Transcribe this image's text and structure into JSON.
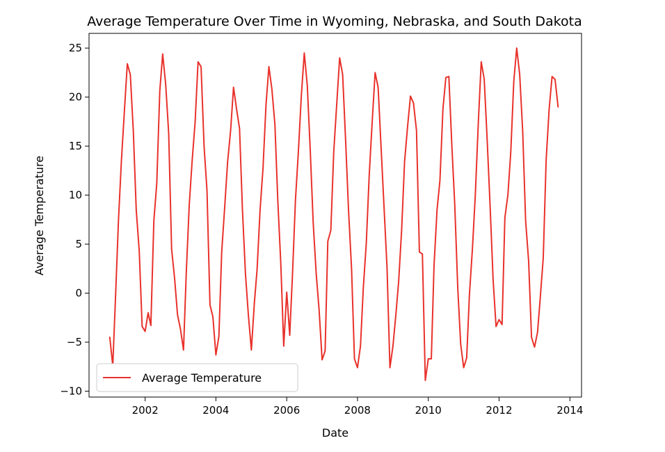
{
  "chart_data": {
    "type": "line",
    "title": "Average Temperature Over Time in Wyoming, Nebraska, and South Dakota",
    "xlabel": "Date",
    "ylabel": "Average Temperature",
    "xlim": [
      "2000-06-01",
      "2014-05-01"
    ],
    "ylim": [
      -10.6,
      26.5
    ],
    "xticks": [
      "2002",
      "2004",
      "2006",
      "2008",
      "2010",
      "2012",
      "2014"
    ],
    "yticks": [
      25,
      20,
      15,
      10,
      5,
      0,
      -5,
      -10
    ],
    "grid": false,
    "legend": {
      "position": "lower-left",
      "entries": [
        "Average Temperature"
      ]
    },
    "series": [
      {
        "name": "Average Temperature",
        "color": "#e8312a",
        "points": [
          {
            "x": "2001-01",
            "y": -4.5
          },
          {
            "x": "2001-02",
            "y": -7.4
          },
          {
            "x": "2001-03",
            "y": -0.5
          },
          {
            "x": "2001-04",
            "y": 7.5
          },
          {
            "x": "2001-05",
            "y": 13.5
          },
          {
            "x": "2001-06",
            "y": 18.6
          },
          {
            "x": "2001-07",
            "y": 23.4
          },
          {
            "x": "2001-08",
            "y": 22.3
          },
          {
            "x": "2001-09",
            "y": 16.5
          },
          {
            "x": "2001-10",
            "y": 8.5
          },
          {
            "x": "2001-11",
            "y": 4.3
          },
          {
            "x": "2001-12",
            "y": -3.4
          },
          {
            "x": "2002-01",
            "y": -3.9
          },
          {
            "x": "2002-02",
            "y": -2.0
          },
          {
            "x": "2002-03",
            "y": -3.3
          },
          {
            "x": "2002-04",
            "y": 7.4
          },
          {
            "x": "2002-05",
            "y": 11.2
          },
          {
            "x": "2002-06",
            "y": 20.6
          },
          {
            "x": "2002-07",
            "y": 24.4
          },
          {
            "x": "2002-08",
            "y": 21.3
          },
          {
            "x": "2002-09",
            "y": 16.3
          },
          {
            "x": "2002-10",
            "y": 4.5
          },
          {
            "x": "2002-11",
            "y": 1.5
          },
          {
            "x": "2002-12",
            "y": -2.2
          },
          {
            "x": "2003-01",
            "y": -3.7
          },
          {
            "x": "2003-02",
            "y": -5.8
          },
          {
            "x": "2003-03",
            "y": 2.0
          },
          {
            "x": "2003-04",
            "y": 9.0
          },
          {
            "x": "2003-05",
            "y": 13.5
          },
          {
            "x": "2003-06",
            "y": 17.5
          },
          {
            "x": "2003-07",
            "y": 23.6
          },
          {
            "x": "2003-08",
            "y": 23.1
          },
          {
            "x": "2003-09",
            "y": 15.0
          },
          {
            "x": "2003-10",
            "y": 10.5
          },
          {
            "x": "2003-11",
            "y": -1.2
          },
          {
            "x": "2003-12",
            "y": -2.4
          },
          {
            "x": "2004-01",
            "y": -6.3
          },
          {
            "x": "2004-02",
            "y": -4.4
          },
          {
            "x": "2004-03",
            "y": 4.2
          },
          {
            "x": "2004-04",
            "y": 8.8
          },
          {
            "x": "2004-05",
            "y": 13.4
          },
          {
            "x": "2004-06",
            "y": 16.6
          },
          {
            "x": "2004-07",
            "y": 21.0
          },
          {
            "x": "2004-08",
            "y": 18.8
          },
          {
            "x": "2004-09",
            "y": 16.8
          },
          {
            "x": "2004-10",
            "y": 8.5
          },
          {
            "x": "2004-11",
            "y": 2.0
          },
          {
            "x": "2004-12",
            "y": -2.2
          },
          {
            "x": "2005-01",
            "y": -5.8
          },
          {
            "x": "2005-02",
            "y": -1.0
          },
          {
            "x": "2005-03",
            "y": 2.4
          },
          {
            "x": "2005-04",
            "y": 8.5
          },
          {
            "x": "2005-05",
            "y": 12.7
          },
          {
            "x": "2005-06",
            "y": 19.2
          },
          {
            "x": "2005-07",
            "y": 23.1
          },
          {
            "x": "2005-08",
            "y": 20.8
          },
          {
            "x": "2005-09",
            "y": 17.2
          },
          {
            "x": "2005-10",
            "y": 9.4
          },
          {
            "x": "2005-11",
            "y": 3.0
          },
          {
            "x": "2005-12",
            "y": -5.4
          },
          {
            "x": "2006-01",
            "y": 0.1
          },
          {
            "x": "2006-02",
            "y": -4.3
          },
          {
            "x": "2006-03",
            "y": 1.8
          },
          {
            "x": "2006-04",
            "y": 9.5
          },
          {
            "x": "2006-05",
            "y": 14.4
          },
          {
            "x": "2006-06",
            "y": 20.2
          },
          {
            "x": "2006-07",
            "y": 24.5
          },
          {
            "x": "2006-08",
            "y": 21.2
          },
          {
            "x": "2006-09",
            "y": 14.5
          },
          {
            "x": "2006-10",
            "y": 7.2
          },
          {
            "x": "2006-11",
            "y": 2.0
          },
          {
            "x": "2006-12",
            "y": -1.7
          },
          {
            "x": "2007-01",
            "y": -6.8
          },
          {
            "x": "2007-02",
            "y": -5.9
          },
          {
            "x": "2007-03",
            "y": 5.3
          },
          {
            "x": "2007-04",
            "y": 6.4
          },
          {
            "x": "2007-05",
            "y": 14.4
          },
          {
            "x": "2007-06",
            "y": 19.3
          },
          {
            "x": "2007-07",
            "y": 24.0
          },
          {
            "x": "2007-08",
            "y": 22.3
          },
          {
            "x": "2007-09",
            "y": 15.5
          },
          {
            "x": "2007-10",
            "y": 8.4
          },
          {
            "x": "2007-11",
            "y": 2.5
          },
          {
            "x": "2007-12",
            "y": -6.7
          },
          {
            "x": "2008-01",
            "y": -7.6
          },
          {
            "x": "2008-02",
            "y": -5.4
          },
          {
            "x": "2008-03",
            "y": 0.5
          },
          {
            "x": "2008-04",
            "y": 5.1
          },
          {
            "x": "2008-05",
            "y": 12.0
          },
          {
            "x": "2008-06",
            "y": 17.5
          },
          {
            "x": "2008-07",
            "y": 22.5
          },
          {
            "x": "2008-08",
            "y": 21.0
          },
          {
            "x": "2008-09",
            "y": 14.8
          },
          {
            "x": "2008-10",
            "y": 8.8
          },
          {
            "x": "2008-11",
            "y": 2.6
          },
          {
            "x": "2008-12",
            "y": -7.6
          },
          {
            "x": "2009-01",
            "y": -5.4
          },
          {
            "x": "2009-02",
            "y": -2.1
          },
          {
            "x": "2009-03",
            "y": 1.2
          },
          {
            "x": "2009-04",
            "y": 6.5
          },
          {
            "x": "2009-05",
            "y": 13.4
          },
          {
            "x": "2009-06",
            "y": 17.0
          },
          {
            "x": "2009-07",
            "y": 20.1
          },
          {
            "x": "2009-08",
            "y": 19.4
          },
          {
            "x": "2009-09",
            "y": 16.6
          },
          {
            "x": "2009-10",
            "y": 4.2
          },
          {
            "x": "2009-11",
            "y": 4.0
          },
          {
            "x": "2009-12",
            "y": -8.9
          },
          {
            "x": "2010-01",
            "y": -6.7
          },
          {
            "x": "2010-02",
            "y": -6.7
          },
          {
            "x": "2010-03",
            "y": 2.8
          },
          {
            "x": "2010-04",
            "y": 8.5
          },
          {
            "x": "2010-05",
            "y": 11.5
          },
          {
            "x": "2010-06",
            "y": 18.8
          },
          {
            "x": "2010-07",
            "y": 22.0
          },
          {
            "x": "2010-08",
            "y": 22.1
          },
          {
            "x": "2010-09",
            "y": 15.0
          },
          {
            "x": "2010-10",
            "y": 9.0
          },
          {
            "x": "2010-11",
            "y": 0.5
          },
          {
            "x": "2010-12",
            "y": -5.2
          },
          {
            "x": "2011-01",
            "y": -7.6
          },
          {
            "x": "2011-02",
            "y": -6.6
          },
          {
            "x": "2011-03",
            "y": -0.2
          },
          {
            "x": "2011-04",
            "y": 4.5
          },
          {
            "x": "2011-05",
            "y": 10.0
          },
          {
            "x": "2011-06",
            "y": 17.4
          },
          {
            "x": "2011-07",
            "y": 23.6
          },
          {
            "x": "2011-08",
            "y": 21.8
          },
          {
            "x": "2011-09",
            "y": 15.5
          },
          {
            "x": "2011-10",
            "y": 8.8
          },
          {
            "x": "2011-11",
            "y": 1.3
          },
          {
            "x": "2011-12",
            "y": -3.4
          },
          {
            "x": "2012-01",
            "y": -2.7
          },
          {
            "x": "2012-02",
            "y": -3.2
          },
          {
            "x": "2012-03",
            "y": 7.7
          },
          {
            "x": "2012-04",
            "y": 10.0
          },
          {
            "x": "2012-05",
            "y": 14.4
          },
          {
            "x": "2012-06",
            "y": 21.6
          },
          {
            "x": "2012-07",
            "y": 25.0
          },
          {
            "x": "2012-08",
            "y": 22.3
          },
          {
            "x": "2012-09",
            "y": 16.5
          },
          {
            "x": "2012-10",
            "y": 7.4
          },
          {
            "x": "2012-11",
            "y": 3.3
          },
          {
            "x": "2012-12",
            "y": -4.5
          },
          {
            "x": "2013-01",
            "y": -5.5
          },
          {
            "x": "2013-02",
            "y": -4.0
          },
          {
            "x": "2013-03",
            "y": -0.5
          },
          {
            "x": "2013-04",
            "y": 3.6
          },
          {
            "x": "2013-05",
            "y": 13.6
          },
          {
            "x": "2013-06",
            "y": 18.8
          },
          {
            "x": "2013-07",
            "y": 22.1
          },
          {
            "x": "2013-08",
            "y": 21.8
          },
          {
            "x": "2013-09",
            "y": 19.0
          }
        ]
      }
    ]
  }
}
